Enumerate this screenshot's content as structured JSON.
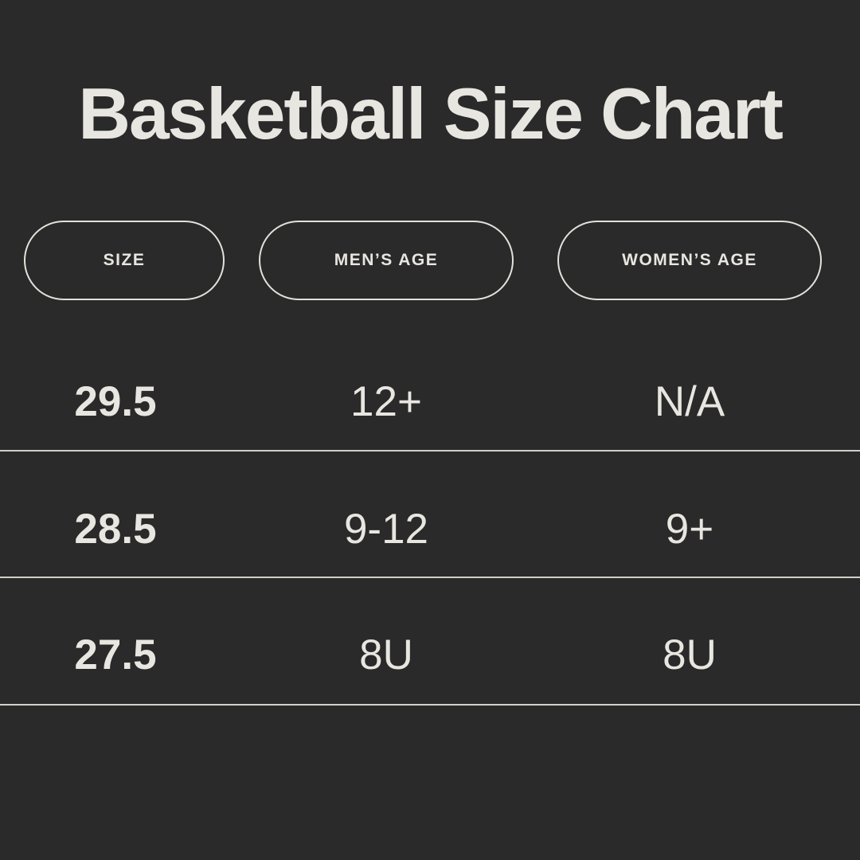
{
  "chart_data": {
    "type": "table",
    "title": "Basketball Size Chart",
    "columns": [
      "SIZE",
      "MEN’S AGE",
      "WOMEN’S AGE"
    ],
    "rows": [
      [
        "29.5",
        "12+",
        "N/A"
      ],
      [
        "28.5",
        "9-12",
        "9+"
      ],
      [
        "27.5",
        "8U",
        "8U"
      ]
    ]
  },
  "colors": {
    "background": "#2a2a2a",
    "text": "#e8e6e0",
    "pill_border": "#e3e1db",
    "divider": "#d2d0ca"
  }
}
